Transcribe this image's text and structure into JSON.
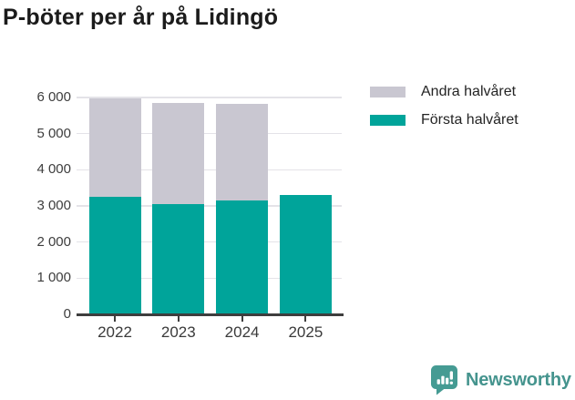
{
  "title": "P-böter per år på Lidingö",
  "legend": [
    {
      "label": "Andra halvåret",
      "color": "#c9c7d1"
    },
    {
      "label": "Första halvåret",
      "color": "#00a49a"
    }
  ],
  "chart_data": {
    "type": "bar",
    "stacked": true,
    "title": "P-böter per år på Lidingö",
    "categories": [
      "2022",
      "2023",
      "2024",
      "2025"
    ],
    "series": [
      {
        "name": "Första halvåret",
        "color": "#00a49a",
        "values": [
          3250,
          3060,
          3160,
          3310
        ]
      },
      {
        "name": "Andra halvåret",
        "color": "#c9c7d1",
        "values": [
          2720,
          2790,
          2670,
          0
        ]
      }
    ],
    "xlabel": "",
    "ylabel": "",
    "ylim": [
      0,
      6000
    ],
    "ytick_interval": 1000,
    "ytick_labels": [
      "0",
      "1 000",
      "2 000",
      "3 000",
      "4 000",
      "5 000",
      "6 000"
    ],
    "grid": true,
    "legend_position": "top-right"
  },
  "colors": {
    "first_half": "#00a49a",
    "second_half": "#c9c7d1",
    "grid": "#e4e3e8",
    "axis": "#3e3e3e",
    "tick_text": "#3d3d3d",
    "title_text": "#1b1b1b",
    "brand_teal": "#45948e"
  },
  "footer": {
    "brand": "Newsworthy"
  }
}
